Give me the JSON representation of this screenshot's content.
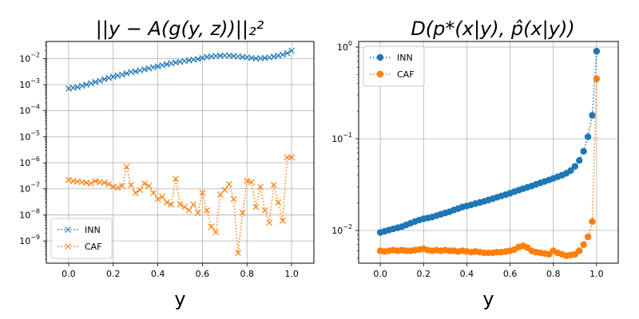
{
  "colors": {
    "INN": "#1f77b4",
    "CAF": "#ff7f0e",
    "grid": "#b0b0b0"
  },
  "chart_data": [
    {
      "type": "scatter",
      "title": "||y − A(g(y, z))||₂²",
      "xlabel": "y",
      "ylabel": "",
      "yscale": "log",
      "xlim": [
        -0.1,
        1.1
      ],
      "ylim": [
        1.4e-10,
        0.045
      ],
      "xticks": [
        0.0,
        0.2,
        0.4,
        0.6,
        0.8,
        1.0
      ],
      "xtick_labels": [
        "0.0",
        "0.2",
        "0.4",
        "0.6",
        "0.8",
        "1.0"
      ],
      "yticks": [
        1e-09,
        1e-08,
        1e-07,
        1e-06,
        1e-05,
        0.0001,
        0.001,
        0.01
      ],
      "ytick_labels": [
        [
          "10",
          "−9"
        ],
        [
          "10",
          "−8"
        ],
        [
          "10",
          "−7"
        ],
        [
          "10",
          "−6"
        ],
        [
          "10",
          "−5"
        ],
        [
          "10",
          "−4"
        ],
        [
          "10",
          "−3"
        ],
        [
          "10",
          "−2"
        ]
      ],
      "grid": true,
      "legend_position": "lower-left",
      "marker": "x",
      "linestyle": "dotted",
      "series": [
        {
          "name": "INN",
          "color_key": "INN",
          "x": [
            0,
            0.02,
            0.04,
            0.06,
            0.08,
            0.1,
            0.12,
            0.14,
            0.16,
            0.18,
            0.2,
            0.22,
            0.24,
            0.26,
            0.28,
            0.3,
            0.32,
            0.34,
            0.36,
            0.38,
            0.4,
            0.42,
            0.44,
            0.46,
            0.48,
            0.5,
            0.52,
            0.54,
            0.56,
            0.58,
            0.6,
            0.62,
            0.64,
            0.66,
            0.68,
            0.7,
            0.72,
            0.74,
            0.76,
            0.78,
            0.8,
            0.82,
            0.84,
            0.86,
            0.88,
            0.9,
            0.92,
            0.94,
            0.96,
            0.98,
            1.0
          ],
          "y": [
            0.0007,
            0.00075,
            0.0008,
            0.0009,
            0.001,
            0.0011,
            0.00125,
            0.0014,
            0.0016,
            0.0018,
            0.002,
            0.0022,
            0.0024,
            0.0027,
            0.003,
            0.0032,
            0.0035,
            0.0038,
            0.0042,
            0.0046,
            0.005,
            0.0055,
            0.006,
            0.0065,
            0.007,
            0.0075,
            0.008,
            0.0085,
            0.009,
            0.0095,
            0.0105,
            0.0115,
            0.012,
            0.0125,
            0.0128,
            0.013,
            0.0128,
            0.0125,
            0.012,
            0.0115,
            0.011,
            0.0105,
            0.01,
            0.0102,
            0.0105,
            0.011,
            0.0118,
            0.0128,
            0.014,
            0.016,
            0.02
          ]
        },
        {
          "name": "CAF",
          "color_key": "CAF",
          "x": [
            0,
            0.02,
            0.04,
            0.06,
            0.08,
            0.1,
            0.12,
            0.14,
            0.16,
            0.18,
            0.2,
            0.22,
            0.24,
            0.26,
            0.28,
            0.3,
            0.32,
            0.34,
            0.36,
            0.38,
            0.4,
            0.42,
            0.44,
            0.46,
            0.48,
            0.5,
            0.52,
            0.54,
            0.56,
            0.58,
            0.6,
            0.62,
            0.64,
            0.66,
            0.68,
            0.7,
            0.72,
            0.74,
            0.76,
            0.78,
            0.8,
            0.82,
            0.84,
            0.86,
            0.88,
            0.9,
            0.92,
            0.94,
            0.96,
            0.98,
            1.0
          ],
          "y": [
            2.2e-07,
            2e-07,
            1.9e-07,
            1.8e-07,
            1.7e-07,
            1.6e-07,
            2e-07,
            1.8e-07,
            1.7e-07,
            1.5e-07,
            1.2e-07,
            1.1e-07,
            1.3e-07,
            7e-07,
            1.4e-07,
            7e-08,
            9e-08,
            1.6e-07,
            1.3e-07,
            7e-08,
            4e-08,
            5e-08,
            3e-08,
            2.5e-08,
            2.4e-07,
            2.5e-08,
            2e-08,
            1.5e-08,
            2.5e-08,
            1.2e-08,
            7e-08,
            1.5e-08,
            3.5e-09,
            2.2e-09,
            6e-08,
            9e-08,
            1.5e-07,
            4e-08,
            3.5e-10,
            1.2e-08,
            2e-07,
            1.8e-07,
            2e-08,
            1.2e-07,
            1.5e-08,
            5e-09,
            1.4e-07,
            3e-08,
            6e-09,
            1.6e-06,
            1.6e-06
          ]
        }
      ]
    },
    {
      "type": "scatter",
      "title": "D(p*(x|y), p̂(x|y))",
      "xlabel": "y",
      "ylabel": "",
      "yscale": "log",
      "xlim": [
        -0.1,
        1.1
      ],
      "ylim": [
        0.0044,
        1.15
      ],
      "xticks": [
        0.0,
        0.2,
        0.4,
        0.6,
        0.8,
        1.0
      ],
      "xtick_labels": [
        "0.0",
        "0.2",
        "0.4",
        "0.6",
        "0.8",
        "1.0"
      ],
      "yticks": [
        0.01,
        0.1,
        1
      ],
      "ytick_labels": [
        [
          "10",
          "−2"
        ],
        [
          "10",
          "−1"
        ],
        [
          "10",
          "0"
        ]
      ],
      "grid": true,
      "legend_position": "upper-left",
      "marker": "o",
      "linestyle": "dotted",
      "series": [
        {
          "name": "INN",
          "color_key": "INN",
          "x": [
            0,
            0.02,
            0.04,
            0.06,
            0.08,
            0.1,
            0.12,
            0.14,
            0.16,
            0.18,
            0.2,
            0.22,
            0.24,
            0.26,
            0.28,
            0.3,
            0.32,
            0.34,
            0.36,
            0.38,
            0.4,
            0.42,
            0.44,
            0.46,
            0.48,
            0.5,
            0.52,
            0.54,
            0.56,
            0.58,
            0.6,
            0.62,
            0.64,
            0.66,
            0.68,
            0.7,
            0.72,
            0.74,
            0.76,
            0.78,
            0.8,
            0.82,
            0.84,
            0.86,
            0.88,
            0.9,
            0.92,
            0.94,
            0.96,
            0.98,
            1.0
          ],
          "y": [
            0.0095,
            0.0098,
            0.0101,
            0.0104,
            0.0107,
            0.011,
            0.0115,
            0.012,
            0.0125,
            0.013,
            0.0134,
            0.0137,
            0.014,
            0.0145,
            0.015,
            0.0155,
            0.016,
            0.0167,
            0.0173,
            0.018,
            0.0185,
            0.019,
            0.0196,
            0.0202,
            0.0208,
            0.0215,
            0.0222,
            0.023,
            0.0238,
            0.0246,
            0.0255,
            0.0265,
            0.0275,
            0.0285,
            0.0295,
            0.0305,
            0.0318,
            0.033,
            0.0342,
            0.0355,
            0.037,
            0.0385,
            0.04,
            0.042,
            0.045,
            0.05,
            0.058,
            0.073,
            0.105,
            0.18,
            0.9
          ]
        },
        {
          "name": "CAF",
          "color_key": "CAF",
          "x": [
            0,
            0.02,
            0.04,
            0.06,
            0.08,
            0.1,
            0.12,
            0.14,
            0.16,
            0.18,
            0.2,
            0.22,
            0.24,
            0.26,
            0.28,
            0.3,
            0.32,
            0.34,
            0.36,
            0.38,
            0.4,
            0.42,
            0.44,
            0.46,
            0.48,
            0.5,
            0.52,
            0.54,
            0.56,
            0.58,
            0.6,
            0.62,
            0.64,
            0.66,
            0.68,
            0.7,
            0.72,
            0.74,
            0.76,
            0.78,
            0.8,
            0.82,
            0.84,
            0.86,
            0.88,
            0.9,
            0.92,
            0.94,
            0.96,
            0.98,
            1.0
          ],
          "y": [
            0.006,
            0.0059,
            0.006,
            0.0061,
            0.006,
            0.0061,
            0.006,
            0.006,
            0.0061,
            0.0062,
            0.0063,
            0.0061,
            0.006,
            0.0061,
            0.006,
            0.0061,
            0.006,
            0.006,
            0.0059,
            0.006,
            0.0059,
            0.0058,
            0.0059,
            0.0058,
            0.0057,
            0.0057,
            0.0057,
            0.0058,
            0.0058,
            0.0059,
            0.006,
            0.0062,
            0.0066,
            0.0068,
            0.0065,
            0.006,
            0.0058,
            0.0057,
            0.0056,
            0.0055,
            0.006,
            0.0057,
            0.0055,
            0.0053,
            0.0054,
            0.0055,
            0.006,
            0.007,
            0.0085,
            0.0125,
            0.45
          ]
        }
      ]
    }
  ]
}
